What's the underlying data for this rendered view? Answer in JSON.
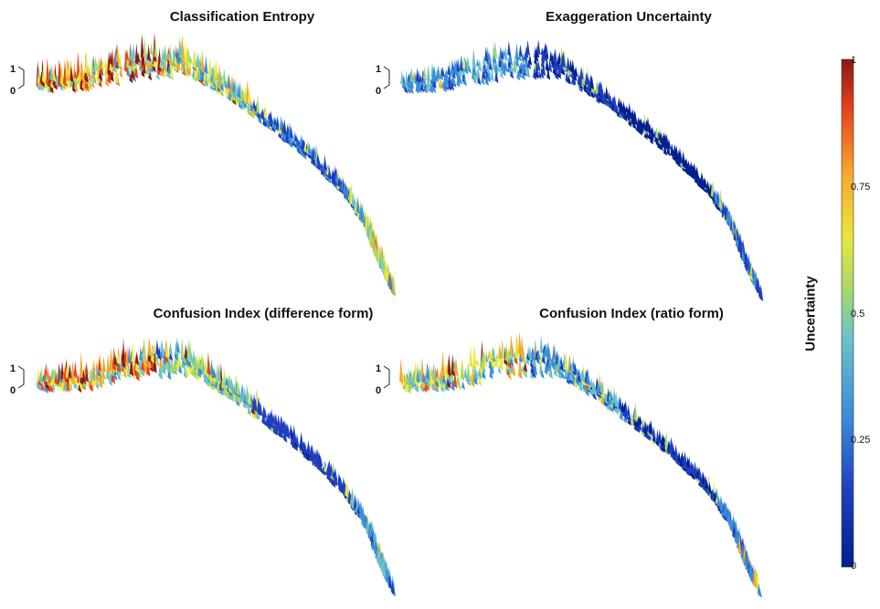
{
  "chart_data": {
    "type": "heatmap",
    "panels": [
      {
        "title": "Classification Entropy",
        "z_ticks": [
          "1",
          "0"
        ],
        "hot_regions": [
          0.85,
          0.6,
          0.2,
          0.55
        ]
      },
      {
        "title": "Exaggeration Uncertainty",
        "z_ticks": [
          "1",
          "0"
        ],
        "hot_regions": [
          0.3,
          0.1,
          0.05,
          0.2
        ]
      },
      {
        "title": "Confusion Index (difference form)",
        "z_ticks": [
          "1",
          "0"
        ],
        "hot_regions": [
          0.8,
          0.5,
          0.15,
          0.35
        ]
      },
      {
        "title": "Confusion Index (ratio form)",
        "z_ticks": [
          "1",
          "0"
        ],
        "hot_regions": [
          0.6,
          0.35,
          0.1,
          0.25
        ]
      }
    ],
    "colorbar": {
      "label": "Uncertainty",
      "ticks": [
        "1",
        "0.75",
        "0.5",
        "0.25",
        "0"
      ],
      "range": [
        0,
        1
      ],
      "colormap": "jet"
    }
  }
}
